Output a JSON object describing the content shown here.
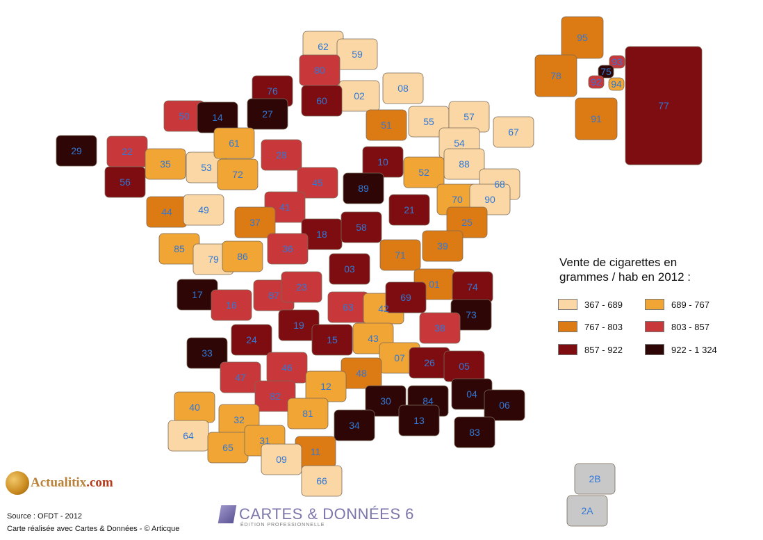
{
  "legend": {
    "title_line1": "Vente de cigarettes en",
    "title_line2": "grammes / hab en 2012 :",
    "classes": [
      {
        "label": "367 - 689",
        "color": "#fad7a4"
      },
      {
        "label": "689 - 767",
        "color": "#f0a535"
      },
      {
        "label": "767 - 803",
        "color": "#dc7a14"
      },
      {
        "label": "803 - 857",
        "color": "#c8373a"
      },
      {
        "label": "857 - 922",
        "color": "#7d0d10"
      },
      {
        "label": "922 - 1 324",
        "color": "#2e0606"
      }
    ]
  },
  "corsica_color": "#c8c8c8",
  "footer": {
    "source": "Source : OFDT - 2012",
    "credit": "Carte réalisée avec Cartes & Données - © Articque"
  },
  "logo": {
    "name": "Actualitix",
    "tld": ".com"
  },
  "brand": {
    "title": "CARTES & DONNÉES 6",
    "subtitle": "ÉDITION PROFESSIONNELLE"
  },
  "departments": [
    {
      "code": "62",
      "class": 0
    },
    {
      "code": "59",
      "class": 0
    },
    {
      "code": "80",
      "class": 3
    },
    {
      "code": "02",
      "class": 0
    },
    {
      "code": "08",
      "class": 0
    },
    {
      "code": "76",
      "class": 4
    },
    {
      "code": "60",
      "class": 4
    },
    {
      "code": "50",
      "class": 3
    },
    {
      "code": "14",
      "class": 5
    },
    {
      "code": "27",
      "class": 5
    },
    {
      "code": "51",
      "class": 2
    },
    {
      "code": "55",
      "class": 0
    },
    {
      "code": "57",
      "class": 0
    },
    {
      "code": "67",
      "class": 0
    },
    {
      "code": "54",
      "class": 0
    },
    {
      "code": "29",
      "class": 5
    },
    {
      "code": "22",
      "class": 3
    },
    {
      "code": "35",
      "class": 1
    },
    {
      "code": "53",
      "class": 0
    },
    {
      "code": "61",
      "class": 1
    },
    {
      "code": "28",
      "class": 3
    },
    {
      "code": "72",
      "class": 1
    },
    {
      "code": "10",
      "class": 4
    },
    {
      "code": "52",
      "class": 1
    },
    {
      "code": "88",
      "class": 0
    },
    {
      "code": "68",
      "class": 0
    },
    {
      "code": "56",
      "class": 4
    },
    {
      "code": "44",
      "class": 2
    },
    {
      "code": "49",
      "class": 0
    },
    {
      "code": "45",
      "class": 3
    },
    {
      "code": "41",
      "class": 3
    },
    {
      "code": "89",
      "class": 5
    },
    {
      "code": "21",
      "class": 4
    },
    {
      "code": "70",
      "class": 1
    },
    {
      "code": "90",
      "class": 0
    },
    {
      "code": "25",
      "class": 2
    },
    {
      "code": "37",
      "class": 2
    },
    {
      "code": "18",
      "class": 4
    },
    {
      "code": "58",
      "class": 4
    },
    {
      "code": "85",
      "class": 1
    },
    {
      "code": "79",
      "class": 0
    },
    {
      "code": "86",
      "class": 1
    },
    {
      "code": "36",
      "class": 3
    },
    {
      "code": "71",
      "class": 2
    },
    {
      "code": "39",
      "class": 2
    },
    {
      "code": "03",
      "class": 4
    },
    {
      "code": "01",
      "class": 2
    },
    {
      "code": "74",
      "class": 4
    },
    {
      "code": "17",
      "class": 5
    },
    {
      "code": "16",
      "class": 3
    },
    {
      "code": "87",
      "class": 3
    },
    {
      "code": "23",
      "class": 3
    },
    {
      "code": "63",
      "class": 3
    },
    {
      "code": "42",
      "class": 1
    },
    {
      "code": "69",
      "class": 4
    },
    {
      "code": "73",
      "class": 5
    },
    {
      "code": "38",
      "class": 3
    },
    {
      "code": "24",
      "class": 4
    },
    {
      "code": "19",
      "class": 4
    },
    {
      "code": "15",
      "class": 4
    },
    {
      "code": "43",
      "class": 1
    },
    {
      "code": "33",
      "class": 5
    },
    {
      "code": "07",
      "class": 1
    },
    {
      "code": "26",
      "class": 4
    },
    {
      "code": "05",
      "class": 4
    },
    {
      "code": "46",
      "class": 3
    },
    {
      "code": "47",
      "class": 3
    },
    {
      "code": "48",
      "class": 2
    },
    {
      "code": "12",
      "class": 1
    },
    {
      "code": "82",
      "class": 3
    },
    {
      "code": "40",
      "class": 1
    },
    {
      "code": "30",
      "class": 5
    },
    {
      "code": "84",
      "class": 5
    },
    {
      "code": "04",
      "class": 5
    },
    {
      "code": "06",
      "class": 5
    },
    {
      "code": "81",
      "class": 1
    },
    {
      "code": "32",
      "class": 1
    },
    {
      "code": "34",
      "class": 5
    },
    {
      "code": "13",
      "class": 5
    },
    {
      "code": "83",
      "class": 5
    },
    {
      "code": "64",
      "class": 0
    },
    {
      "code": "65",
      "class": 1
    },
    {
      "code": "31",
      "class": 1
    },
    {
      "code": "11",
      "class": 2
    },
    {
      "code": "09",
      "class": 0
    },
    {
      "code": "66",
      "class": 0
    },
    {
      "code": "95",
      "class": 2
    },
    {
      "code": "78",
      "class": 2
    },
    {
      "code": "93",
      "class": 3
    },
    {
      "code": "75",
      "class": 5
    },
    {
      "code": "92",
      "class": 3
    },
    {
      "code": "94",
      "class": 1
    },
    {
      "code": "91",
      "class": 2
    },
    {
      "code": "77",
      "class": 4
    },
    {
      "code": "2B",
      "class": -1
    },
    {
      "code": "2A",
      "class": -1
    }
  ]
}
